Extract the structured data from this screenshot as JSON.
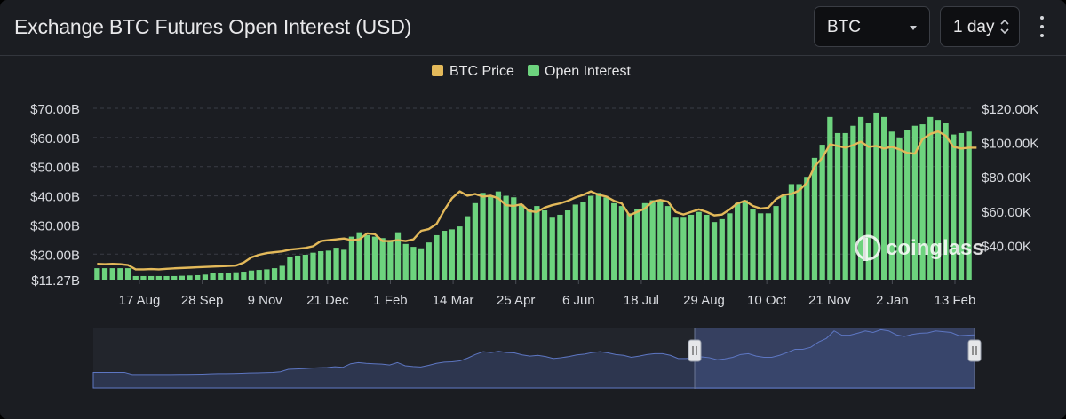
{
  "header": {
    "title": "Exchange BTC Futures Open Interest (USD)",
    "coin_select": {
      "value": "BTC"
    },
    "interval_select": {
      "value": "1 day"
    }
  },
  "watermark": {
    "text": "coinglass"
  },
  "chart_data": {
    "type": "bar",
    "legend": {
      "placement": "top-center",
      "items": [
        {
          "name": "BTC Price",
          "color": "#e3b95a",
          "type": "line"
        },
        {
          "name": "Open Interest",
          "color": "#6dd37e",
          "type": "bar"
        }
      ]
    },
    "x_ticks": [
      "17 Aug",
      "28 Sep",
      "9 Nov",
      "21 Dec",
      "1 Feb",
      "14 Mar",
      "25 Apr",
      "6 Jun",
      "18 Jul",
      "29 Aug",
      "10 Oct",
      "21 Nov",
      "2 Jan",
      "13 Feb"
    ],
    "y_left": {
      "ticks": [
        "$11.27B",
        "$20.00B",
        "$30.00B",
        "$40.00B",
        "$50.00B",
        "$60.00B",
        "$70.00B"
      ],
      "range": [
        11.27,
        70
      ]
    },
    "y_right": {
      "ticks": [
        "$40.00K",
        "$60.00K",
        "$80.00K",
        "$100.00K",
        "$120.00K"
      ],
      "range": [
        20,
        120
      ]
    },
    "grid": true,
    "series": [
      {
        "name": "Open Interest",
        "axis": "left",
        "values": [
          15.2,
          15.2,
          15.2,
          15.2,
          15.2,
          12.5,
          12.5,
          12.5,
          12.5,
          12.5,
          12.5,
          12.6,
          12.7,
          12.8,
          13.0,
          13.4,
          13.6,
          13.6,
          13.8,
          14.0,
          14.4,
          14.6,
          14.8,
          15.2,
          16.0,
          19.0,
          19.5,
          19.8,
          20.5,
          21.0,
          21.2,
          22.2,
          21.5,
          26.0,
          27.5,
          26.5,
          26.0,
          25.5,
          24.5,
          27.5,
          23.5,
          22.5,
          22.0,
          24.0,
          26.5,
          28.0,
          28.5,
          29.5,
          33.0,
          37.5,
          41.0,
          40.0,
          41.5,
          40.0,
          39.5,
          37.0,
          35.5,
          36.5,
          35.0,
          32.5,
          33.5,
          35.0,
          37.0,
          38.0,
          40.0,
          41.0,
          39.5,
          37.5,
          36.5,
          34.0,
          35.5,
          37.5,
          38.5,
          38.5,
          36.5,
          32.5,
          32.5,
          33.5,
          34.5,
          33.5,
          31.0,
          32.0,
          34.0,
          37.5,
          38.5,
          35.5,
          34.0,
          34.0,
          36.5,
          40.0,
          44.0,
          44.0,
          46.5,
          53.0,
          57.5,
          67.0,
          61.5,
          61.5,
          64.0,
          67.0,
          65.0,
          68.5,
          67.0,
          62.0,
          60.0,
          62.5,
          64.0,
          64.5,
          67.0,
          66.0,
          65.0,
          61.0,
          61.5,
          62.0
        ]
      },
      {
        "name": "BTC Price",
        "axis": "right",
        "values": [
          29.2,
          29.0,
          29.2,
          29.0,
          28.5,
          26.0,
          26.0,
          26.2,
          26.0,
          26.3,
          26.6,
          26.8,
          27.0,
          27.2,
          27.4,
          27.6,
          27.8,
          28.0,
          28.2,
          30.0,
          33.0,
          34.5,
          35.5,
          36.0,
          36.5,
          37.5,
          38.0,
          38.5,
          39.5,
          42.5,
          43.0,
          43.5,
          44.0,
          43.0,
          43.5,
          47.0,
          46.5,
          42.5,
          42.5,
          43.0,
          42.5,
          43.5,
          48.5,
          49.5,
          52.5,
          60.5,
          67.5,
          71.5,
          69.0,
          70.0,
          68.5,
          69.0,
          67.5,
          63.5,
          63.0,
          64.0,
          60.0,
          59.5,
          62.0,
          63.5,
          64.5,
          66.0,
          68.0,
          69.5,
          71.5,
          69.5,
          68.5,
          66.0,
          64.5,
          57.5,
          59.5,
          61.5,
          65.5,
          66.5,
          65.5,
          59.5,
          58.0,
          59.5,
          61.0,
          59.5,
          57.5,
          58.0,
          61.0,
          64.5,
          66.0,
          63.0,
          61.5,
          62.0,
          67.0,
          69.5,
          70.0,
          72.0,
          76.5,
          86.0,
          91.0,
          99.0,
          98.0,
          97.0,
          98.5,
          100.5,
          97.5,
          98.0,
          96.5,
          97.5,
          96.0,
          94.0,
          93.5,
          102.0,
          105.0,
          106.5,
          104.0,
          97.5,
          96.5,
          97.0,
          97.0
        ]
      }
    ]
  }
}
